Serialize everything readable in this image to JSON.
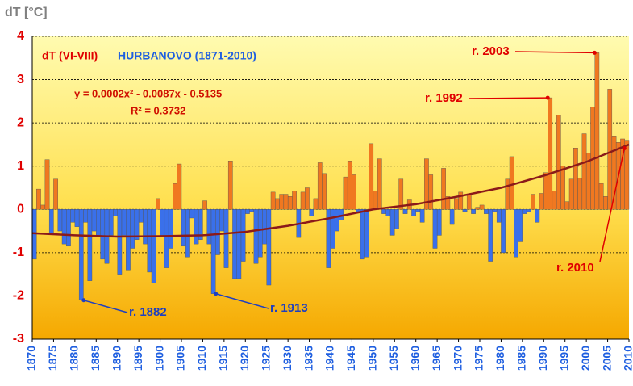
{
  "chart_data": {
    "type": "bar",
    "title": "dT (VI-VIII)",
    "subtitle": "HURBANOVO (1871-2010)",
    "y_label": "dT [°C]",
    "equation": "y = 0.0002x² - 0.0087x - 0.5135",
    "r_squared": "R² = 0.3732",
    "x": [
      1871,
      1872,
      1873,
      1874,
      1875,
      1876,
      1877,
      1878,
      1879,
      1880,
      1881,
      1882,
      1883,
      1884,
      1885,
      1886,
      1887,
      1888,
      1889,
      1890,
      1891,
      1892,
      1893,
      1894,
      1895,
      1896,
      1897,
      1898,
      1899,
      1900,
      1901,
      1902,
      1903,
      1904,
      1905,
      1906,
      1907,
      1908,
      1909,
      1910,
      1911,
      1912,
      1913,
      1914,
      1915,
      1916,
      1917,
      1918,
      1919,
      1920,
      1921,
      1922,
      1923,
      1924,
      1925,
      1926,
      1927,
      1928,
      1929,
      1930,
      1931,
      1932,
      1933,
      1934,
      1935,
      1936,
      1937,
      1938,
      1939,
      1940,
      1941,
      1942,
      1943,
      1944,
      1945,
      1946,
      1947,
      1948,
      1949,
      1950,
      1951,
      1952,
      1953,
      1954,
      1955,
      1956,
      1957,
      1958,
      1959,
      1960,
      1961,
      1962,
      1963,
      1964,
      1965,
      1966,
      1967,
      1968,
      1969,
      1970,
      1971,
      1972,
      1973,
      1974,
      1975,
      1976,
      1977,
      1978,
      1979,
      1980,
      1981,
      1982,
      1983,
      1984,
      1985,
      1986,
      1987,
      1988,
      1989,
      1990,
      1991,
      1992,
      1993,
      1994,
      1995,
      1996,
      1997,
      1998,
      1999,
      2000,
      2001,
      2002,
      2003,
      2004,
      2005,
      2006,
      2007,
      2008,
      2009,
      2010
    ],
    "values": [
      -1.15,
      0.47,
      0.1,
      1.15,
      -0.55,
      0.7,
      -0.5,
      -0.8,
      -0.85,
      -0.3,
      -0.4,
      -2.1,
      -0.3,
      -1.65,
      -0.5,
      -0.6,
      -1.15,
      -1.25,
      -0.6,
      -0.15,
      -1.5,
      -0.6,
      -1.4,
      -0.9,
      -0.7,
      -0.3,
      -0.8,
      -1.45,
      -1.7,
      0.25,
      -0.6,
      -1.35,
      -0.9,
      0.6,
      1.05,
      -0.85,
      -1.1,
      -0.2,
      -0.8,
      -0.7,
      0.2,
      -0.8,
      -1.95,
      -1.05,
      -0.5,
      -1.35,
      1.12,
      -1.6,
      -1.6,
      -1.2,
      -0.1,
      -0.05,
      -1.25,
      -1.1,
      -0.8,
      -1.75,
      0.4,
      0.25,
      0.35,
      0.35,
      0.3,
      0.42,
      -0.65,
      0.4,
      0.5,
      -0.15,
      0.25,
      1.08,
      0.83,
      -1.35,
      -0.9,
      -0.5,
      -0.25,
      0.75,
      1.12,
      0.8,
      -0.05,
      -1.15,
      -1.1,
      1.52,
      0.42,
      1.17,
      -0.1,
      -0.15,
      -0.6,
      -0.45,
      0.7,
      -0.1,
      0.22,
      -0.15,
      -0.05,
      -0.3,
      1.17,
      0.8,
      -0.9,
      -0.6,
      0.95,
      0.3,
      -0.35,
      0.25,
      0.4,
      -0.05,
      0.35,
      -0.1,
      0.05,
      0.1,
      -0.1,
      -1.2,
      -0.05,
      -0.3,
      -1.0,
      0.7,
      1.22,
      -1.1,
      -0.75,
      -0.1,
      -0.05,
      0.35,
      -0.3,
      0.37,
      0.85,
      2.58,
      0.43,
      2.18,
      1.0,
      0.18,
      0.7,
      1.42,
      0.72,
      1.75,
      1.3,
      2.37,
      3.62,
      0.6,
      0.3,
      2.78,
      1.68,
      1.55,
      1.63,
      1.6
    ],
    "positive_color": "#f07820",
    "negative_color": "#3a70ea",
    "trend": {
      "color": "#8b1a1a",
      "x": [
        1870,
        1880,
        1890,
        1900,
        1910,
        1920,
        1930,
        1940,
        1950,
        1960,
        1970,
        1980,
        1990,
        2000,
        2010
      ],
      "values": [
        -0.55,
        -0.6,
        -0.63,
        -0.62,
        -0.6,
        -0.52,
        -0.38,
        -0.2,
        0.0,
        0.12,
        0.3,
        0.5,
        0.78,
        1.1,
        1.5
      ]
    },
    "xlim": [
      1870,
      2010
    ],
    "xticks": [
      1870,
      1875,
      1880,
      1885,
      1890,
      1895,
      1900,
      1905,
      1910,
      1915,
      1920,
      1925,
      1930,
      1935,
      1940,
      1945,
      1950,
      1955,
      1960,
      1965,
      1970,
      1975,
      1980,
      1985,
      1990,
      1995,
      2000,
      2005,
      2010
    ],
    "ylim": [
      -3,
      4
    ],
    "yticks": [
      -3,
      -2,
      -1,
      0,
      1,
      2,
      3,
      4
    ],
    "grid": true,
    "annotations": [
      {
        "text": "r. 2003",
        "x": 2003,
        "y": 3.62,
        "color": "#e00000"
      },
      {
        "text": "r. 1992",
        "x": 1992,
        "y": 2.58,
        "color": "#e00000"
      },
      {
        "text": "r. 1882",
        "x": 1882,
        "y": -2.1,
        "color": "#1f3fc0"
      },
      {
        "text": "r. 1913",
        "x": 1913,
        "y": -1.95,
        "color": "#1f3fc0"
      },
      {
        "text": "r. 2010",
        "x": 2010,
        "y": 1.6,
        "color": "#e00000"
      }
    ]
  }
}
